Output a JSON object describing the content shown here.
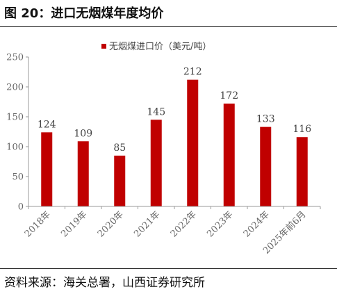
{
  "header": {
    "title": "图 20：进口无烟煤年度均价"
  },
  "footer": {
    "source": "资料来源：海关总署，山西证券研究所"
  },
  "colors": {
    "bar": "#c00000",
    "axis": "#999999",
    "text": "#444444"
  },
  "chart_data": {
    "type": "bar",
    "categories": [
      "2018年",
      "2019年",
      "2020年",
      "2021年",
      "2022年",
      "2023年",
      "2024年",
      "2025年前6月"
    ],
    "series": [
      {
        "name": "无烟煤进口价（美元/吨）",
        "values": [
          124,
          109,
          85,
          145,
          212,
          172,
          133,
          116
        ]
      }
    ],
    "data_labels": [
      "124",
      "109",
      "85",
      "145",
      "212",
      "172",
      "133",
      "116"
    ],
    "ylim": [
      0,
      250
    ],
    "yticks": [
      0,
      50,
      100,
      150,
      200,
      250
    ],
    "grid": false,
    "legend_position": "top-center"
  }
}
